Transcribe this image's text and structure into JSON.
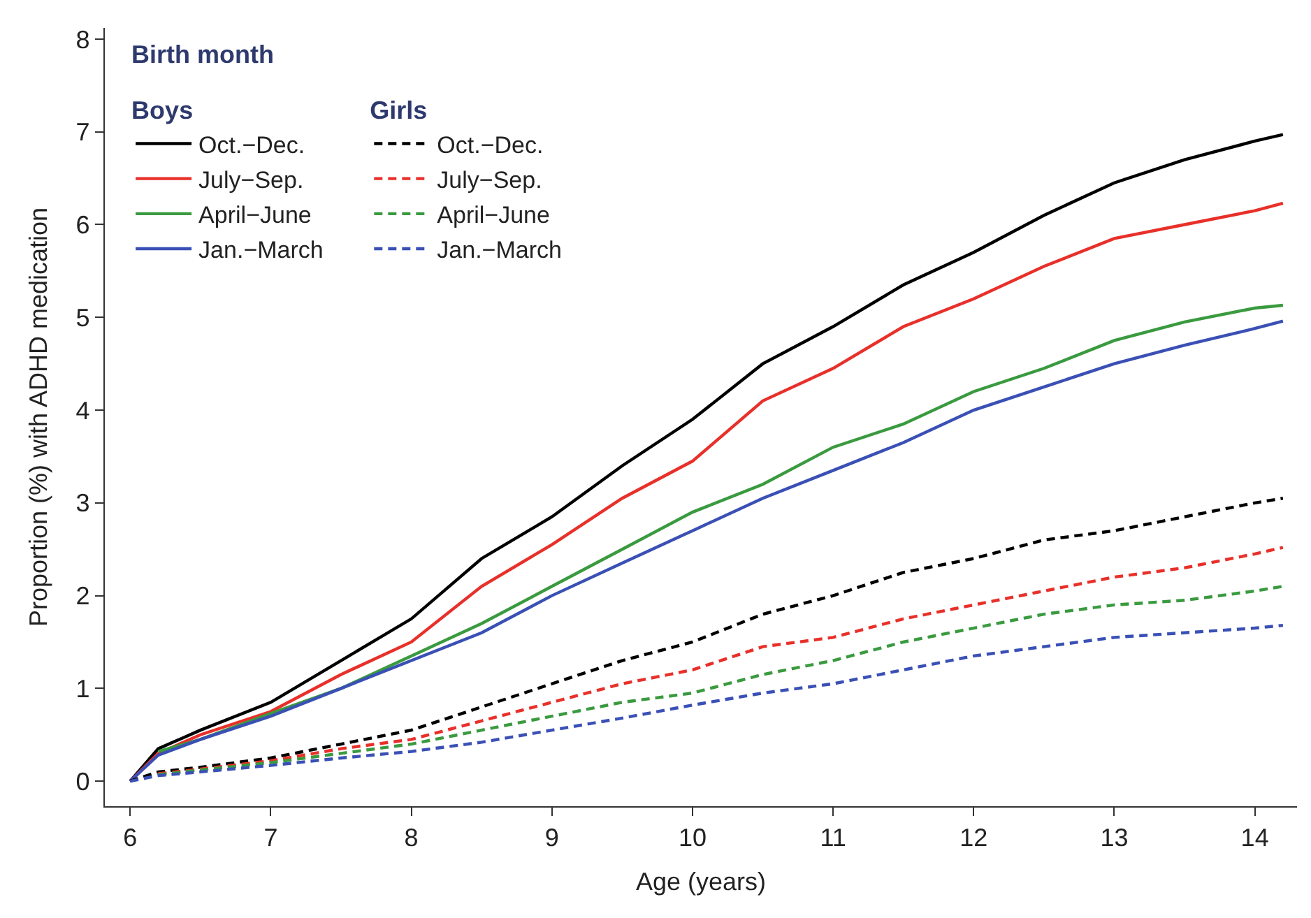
{
  "chart_data": {
    "type": "line",
    "xlabel": "Age (years)",
    "ylabel": "Proportion (%) with ADHD medication",
    "legend_title": "Birth month",
    "legend": "top left",
    "marker": "none",
    "xlim": [
      5.82,
      14.3
    ],
    "xticks": [
      6,
      7,
      8,
      9,
      10,
      11,
      12,
      13,
      14
    ],
    "ylim": [
      -0.27,
      8.12
    ],
    "yticks": [
      0,
      1,
      2,
      3,
      4,
      5,
      6,
      7,
      8
    ],
    "x": [
      6,
      6.2,
      6.5,
      7,
      7.5,
      8,
      8.5,
      9,
      9.5,
      10,
      10.5,
      11,
      11.5,
      12,
      12.5,
      13,
      13.5,
      14,
      14.2
    ],
    "annotations": [
      "Boys",
      "Girls"
    ],
    "series": [
      {
        "name": "Oct.−Dec.",
        "color": "#000000",
        "line_style": "solid",
        "values": [
          0,
          0.35,
          0.55,
          0.85,
          1.3,
          1.75,
          2.4,
          2.85,
          3.4,
          3.9,
          4.5,
          4.9,
          5.35,
          5.7,
          6.1,
          6.45,
          6.7,
          6.9,
          6.97
        ]
      },
      {
        "name": "July−Sep.",
        "color": "#e8302a",
        "line_style": "solid",
        "values": [
          0,
          0.3,
          0.5,
          0.75,
          1.15,
          1.5,
          2.1,
          2.55,
          3.05,
          3.45,
          4.1,
          4.45,
          4.9,
          5.2,
          5.55,
          5.85,
          6.0,
          6.15,
          6.23
        ]
      },
      {
        "name": "April−June",
        "color": "#3a9a3f",
        "line_style": "solid",
        "values": [
          null,
          0.32,
          0.45,
          0.73,
          1.0,
          1.35,
          1.7,
          2.1,
          2.5,
          2.9,
          3.2,
          3.6,
          3.85,
          4.2,
          4.45,
          4.75,
          4.95,
          5.1,
          5.13
        ]
      },
      {
        "name": "Jan.−March",
        "color": "#3a50b5",
        "line_style": "solid",
        "values": [
          0,
          0.28,
          0.45,
          0.7,
          1.0,
          1.3,
          1.6,
          2.0,
          2.35,
          2.7,
          3.05,
          3.35,
          3.65,
          4.0,
          4.25,
          4.5,
          4.7,
          4.88,
          4.96
        ]
      },
      {
        "name": "Oct.−Dec.",
        "color": "#000000",
        "line_style": "dashed",
        "values": [
          0,
          0.1,
          0.15,
          0.25,
          0.4,
          0.55,
          0.8,
          1.05,
          1.3,
          1.5,
          1.8,
          2.0,
          2.25,
          2.4,
          2.6,
          2.7,
          2.85,
          3.0,
          3.05
        ]
      },
      {
        "name": "July−Sep.",
        "color": "#e8302a",
        "line_style": "dashed",
        "values": [
          null,
          0.08,
          0.13,
          0.22,
          0.35,
          0.45,
          0.65,
          0.85,
          1.05,
          1.2,
          1.45,
          1.55,
          1.75,
          1.9,
          2.05,
          2.2,
          2.3,
          2.45,
          2.52
        ]
      },
      {
        "name": "April−June",
        "color": "#3a9a3f",
        "line_style": "dashed",
        "values": [
          null,
          0.07,
          0.12,
          0.2,
          0.3,
          0.4,
          0.55,
          0.7,
          0.85,
          0.95,
          1.15,
          1.3,
          1.5,
          1.65,
          1.8,
          1.9,
          1.95,
          2.05,
          2.1
        ]
      },
      {
        "name": "Jan.−March",
        "color": "#3a50b5",
        "line_style": "dashed",
        "values": [
          0,
          0.06,
          0.1,
          0.17,
          0.25,
          0.32,
          0.42,
          0.55,
          0.68,
          0.82,
          0.95,
          1.05,
          1.2,
          1.35,
          1.45,
          1.55,
          1.6,
          1.65,
          1.68
        ]
      }
    ]
  }
}
